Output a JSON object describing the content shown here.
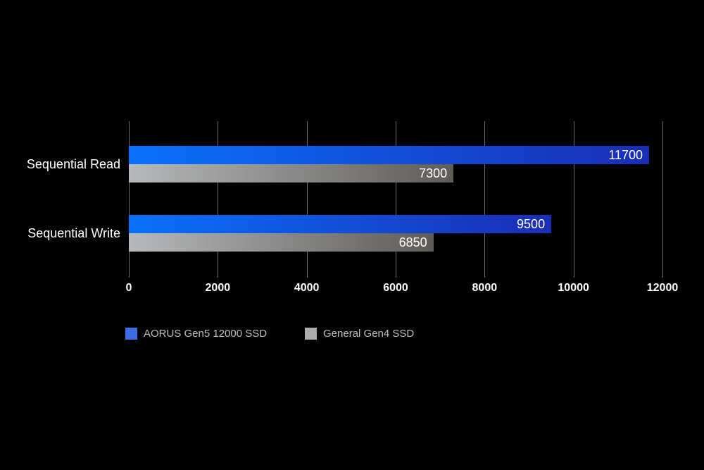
{
  "chart_data": {
    "type": "bar",
    "orientation": "horizontal",
    "title": "",
    "categories": [
      "Sequential Read",
      "Sequential Write"
    ],
    "series": [
      {
        "name": "AORUS Gen5 12000 SSD",
        "values": [
          11700,
          9500
        ],
        "bar_gradient": [
          "#0a71fb",
          "#1a2db5"
        ],
        "legend_color": "#3d6de5"
      },
      {
        "name": "General Gen4 SSD",
        "values": [
          7300,
          6850
        ],
        "bar_gradient": [
          "#b6b8ba",
          "#5f5c58"
        ],
        "legend_color": "#acacac"
      }
    ],
    "x_ticks": [
      0,
      2000,
      4000,
      6000,
      8000,
      10000,
      12000
    ],
    "xlim": [
      0,
      12000
    ],
    "xlabel": "",
    "ylabel": "",
    "grid": "vertical",
    "gridline_color": "#6e6e6e",
    "background": "#000000",
    "value_labels": "inside-end",
    "value_label_color": "#ffffff",
    "legend_position": "bottom-left",
    "legend_text_color": "#bfbfbf"
  }
}
